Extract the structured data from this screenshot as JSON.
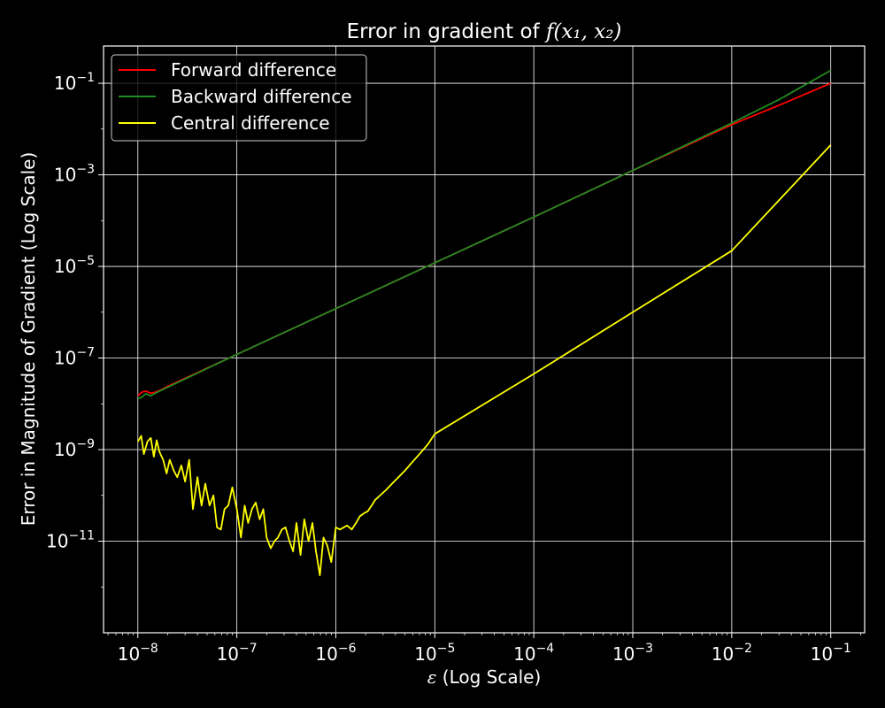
{
  "chart_data": {
    "type": "line",
    "title": {
      "prefix": "Error in gradient of ",
      "math": "f(x₁, x₂)"
    },
    "xlabel": {
      "symbol": "ε",
      "text": " (Log Scale)"
    },
    "ylabel": "Error in Magnitude of Gradient (Log Scale)",
    "x_scale": "log",
    "y_scale": "log",
    "xlim": [
      4.5e-09,
      0.22
    ],
    "ylim": [
      1e-13,
      0.65
    ],
    "grid": true,
    "legend_position": "top-left",
    "x_ticks": [
      {
        "value": 1e-08,
        "base": "10",
        "exp": "−8"
      },
      {
        "value": 1e-07,
        "base": "10",
        "exp": "−7"
      },
      {
        "value": 1e-06,
        "base": "10",
        "exp": "−6"
      },
      {
        "value": 1e-05,
        "base": "10",
        "exp": "−5"
      },
      {
        "value": 0.0001,
        "base": "10",
        "exp": "−4"
      },
      {
        "value": 0.001,
        "base": "10",
        "exp": "−3"
      },
      {
        "value": 0.01,
        "base": "10",
        "exp": "−2"
      },
      {
        "value": 0.1,
        "base": "10",
        "exp": "−1"
      }
    ],
    "y_ticks": [
      {
        "value": 1e-11,
        "base": "10",
        "exp": "−11"
      },
      {
        "value": 1e-09,
        "base": "10",
        "exp": "−9"
      },
      {
        "value": 1e-07,
        "base": "10",
        "exp": "−7"
      },
      {
        "value": 1e-05,
        "base": "10",
        "exp": "−5"
      },
      {
        "value": 0.001,
        "base": "10",
        "exp": "−3"
      },
      {
        "value": 0.1,
        "base": "10",
        "exp": "−1"
      }
    ],
    "series": [
      {
        "name": "Forward difference",
        "color": "#ff0000",
        "x": [
          1e-08,
          1.1e-08,
          1.2e-08,
          1.35e-08,
          1.5e-08,
          1.7e-08,
          2e-08,
          1e-07,
          1e-06,
          1e-05,
          0.0001,
          0.001,
          0.01,
          0.03,
          0.1
        ],
        "y": [
          1.5e-08,
          1.8e-08,
          1.9e-08,
          1.7e-08,
          1.8e-08,
          2e-08,
          2.4e-08,
          1.2e-07,
          1.2e-06,
          1.2e-05,
          0.00012,
          0.00125,
          0.0125,
          0.033,
          0.1
        ]
      },
      {
        "name": "Backward difference",
        "color": "#228b22",
        "x": [
          1e-08,
          1.1e-08,
          1.2e-08,
          1.35e-08,
          1.5e-08,
          1.7e-08,
          2e-08,
          1e-07,
          1e-06,
          1e-05,
          0.0001,
          0.001,
          0.01,
          0.03,
          0.1
        ],
        "y": [
          1.3e-08,
          1.4e-08,
          1.65e-08,
          1.5e-08,
          1.7e-08,
          1.95e-08,
          2.3e-08,
          1.2e-07,
          1.2e-06,
          1.2e-05,
          0.00012,
          0.00125,
          0.0135,
          0.044,
          0.19
        ]
      },
      {
        "name": "Central difference",
        "color": "#ffff00",
        "x": [
          1e-08,
          1.08e-08,
          1.15e-08,
          1.25e-08,
          1.35e-08,
          1.45e-08,
          1.55e-08,
          1.65e-08,
          1.8e-08,
          1.95e-08,
          2.1e-08,
          2.3e-08,
          2.5e-08,
          2.75e-08,
          3e-08,
          3.3e-08,
          3.6e-08,
          4e-08,
          4.4e-08,
          4.8e-08,
          5.3e-08,
          5.8e-08,
          6.3e-08,
          6.9e-08,
          7.5e-08,
          8.2e-08,
          9e-08,
          1e-07,
          1.1e-07,
          1.2e-07,
          1.3e-07,
          1.42e-07,
          1.55e-07,
          1.7e-07,
          1.85e-07,
          2e-07,
          2.2e-07,
          2.4e-07,
          2.6e-07,
          2.85e-07,
          3.1e-07,
          3.4e-07,
          3.7e-07,
          4e-07,
          4.4e-07,
          4.8e-07,
          5.3e-07,
          5.8e-07,
          6.3e-07,
          6.9e-07,
          7.5e-07,
          8.2e-07,
          9e-07,
          1e-06,
          1.1e-06,
          1.2e-06,
          1.3e-06,
          1.45e-06,
          1.6e-06,
          1.75e-06,
          1.9e-06,
          2.1e-06,
          2.3e-06,
          2.5e-06,
          2.8e-06,
          3.2e-06,
          3.7e-06,
          4.3e-06,
          5e-06,
          6e-06,
          7e-06,
          8.5e-06,
          1e-05,
          0.0001,
          0.001,
          0.01,
          0.1
        ],
        "y": [
          1.5e-09,
          2e-09,
          8e-10,
          1.5e-09,
          1.8e-09,
          7e-10,
          1.6e-09,
          9e-10,
          6e-10,
          3e-10,
          6e-10,
          3.5e-10,
          2.5e-10,
          4.5e-10,
          2e-10,
          6e-10,
          5e-11,
          2.5e-10,
          6e-11,
          1.8e-10,
          6e-11,
          1e-10,
          2e-11,
          1.8e-11,
          5e-11,
          6e-11,
          1.5e-10,
          5e-11,
          1.2e-11,
          6e-11,
          2.5e-11,
          5e-11,
          7e-11,
          3e-11,
          5e-11,
          1.2e-11,
          7e-12,
          1e-11,
          1.2e-11,
          1.8e-11,
          2e-11,
          1e-11,
          6e-12,
          2.5e-11,
          5e-12,
          3e-11,
          1e-11,
          2.5e-11,
          6e-12,
          1.8e-12,
          1.2e-11,
          8e-12,
          3.5e-12,
          2e-11,
          1.8e-11,
          2e-11,
          2.2e-11,
          1.8e-11,
          2.5e-11,
          3.5e-11,
          4e-11,
          4.5e-11,
          6e-11,
          8e-11,
          1e-10,
          1.3e-10,
          1.8e-10,
          2.5e-10,
          3.5e-10,
          5.5e-10,
          8e-10,
          1.3e-09,
          2.2e-09,
          4.5e-08,
          1e-06,
          2.2e-05,
          0.0045
        ]
      }
    ]
  }
}
